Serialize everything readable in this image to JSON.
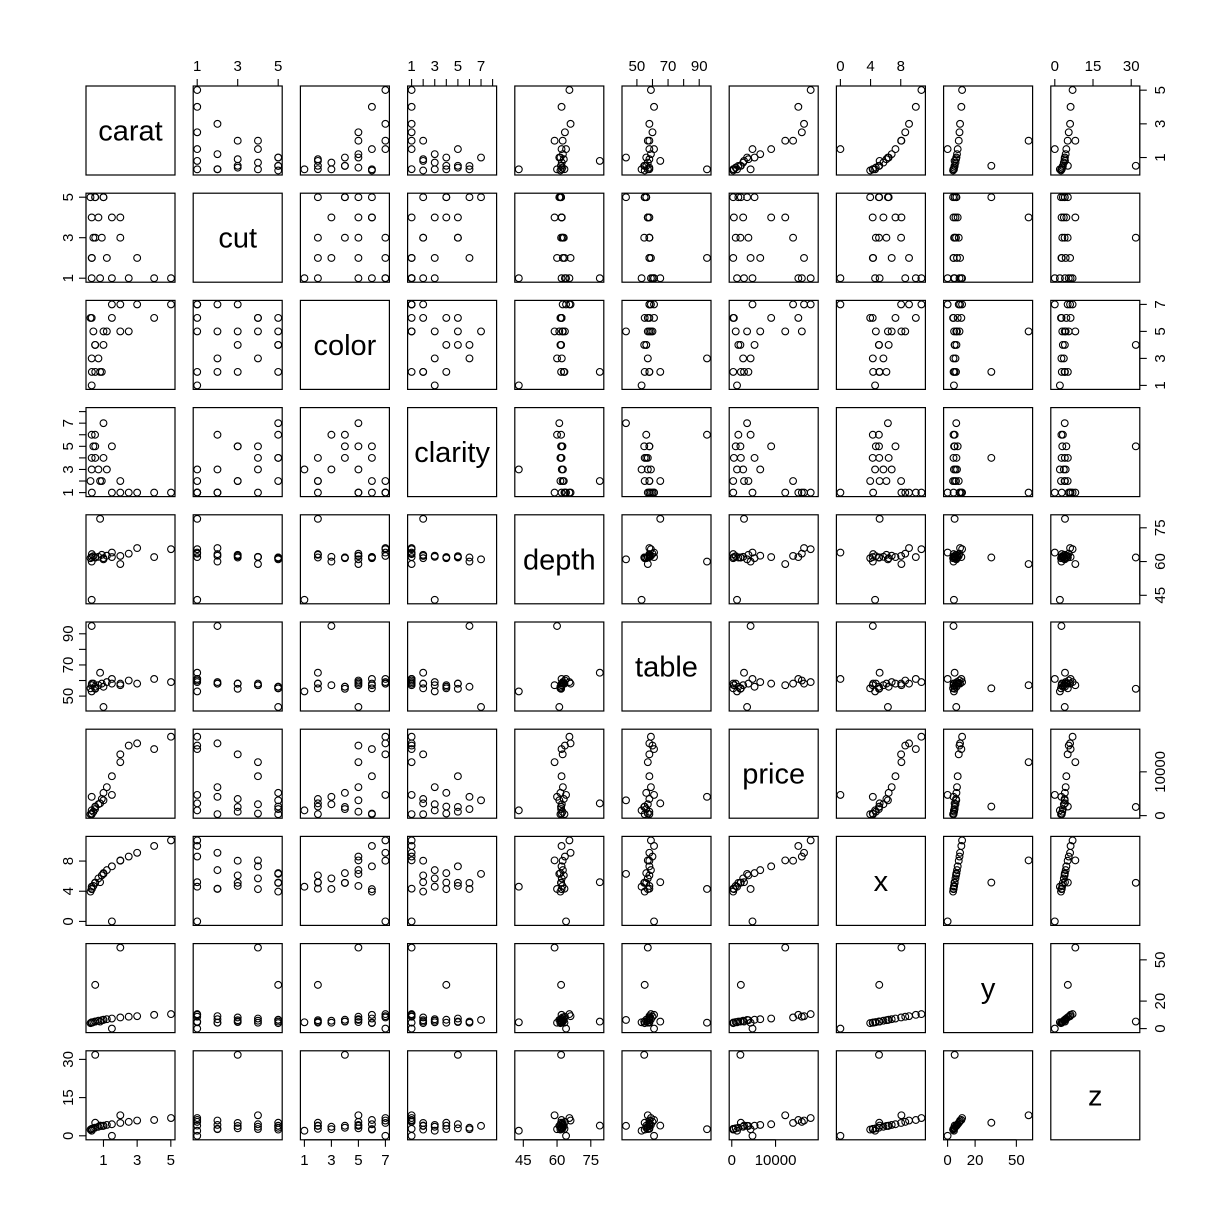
{
  "chart_data": {
    "type": "scatter",
    "subtype": "scatterplot-matrix",
    "title": "",
    "variables": [
      "carat",
      "cut",
      "color",
      "clarity",
      "depth",
      "table",
      "price",
      "x",
      "y",
      "z"
    ],
    "ranges": {
      "carat": [
        0.2,
        5.01
      ],
      "cut": [
        1,
        5
      ],
      "color": [
        1,
        7
      ],
      "clarity": [
        1,
        8
      ],
      "depth": [
        43,
        79
      ],
      "table": [
        43,
        95
      ],
      "price": [
        326,
        18823
      ],
      "x": [
        0,
        10.74
      ],
      "y": [
        0,
        58.9
      ],
      "z": [
        0,
        31.8
      ]
    },
    "ticks": {
      "carat": [
        1,
        3,
        5
      ],
      "cut": [
        1,
        3,
        5
      ],
      "color": [
        1,
        3,
        5,
        7
      ],
      "clarity": [
        1,
        3,
        5,
        7
      ],
      "depth": [
        45,
        60,
        75
      ],
      "table": [
        50,
        70,
        90
      ],
      "price": [
        0,
        10000
      ],
      "x": [
        0,
        4,
        8
      ],
      "y": [
        0,
        20,
        50
      ],
      "z": [
        0,
        15,
        30
      ]
    },
    "minor_ticks": {
      "clarity": [
        2,
        4,
        6,
        8
      ],
      "table": [
        60,
        80
      ]
    },
    "tick_labels": {
      "carat": [
        "1",
        "3",
        "5"
      ],
      "cut": [
        "1",
        "3",
        "5"
      ],
      "color": [
        "1",
        "3",
        "5",
        "7"
      ],
      "clarity": [
        "1",
        "3",
        "5",
        "7"
      ],
      "depth": [
        "45",
        "60",
        "75"
      ],
      "table": [
        "50",
        "70",
        "90"
      ],
      "price": [
        "0",
        "10000"
      ],
      "x": [
        "0",
        "4",
        "8"
      ],
      "y": [
        "0",
        "20",
        "50"
      ],
      "z": [
        "0",
        "15",
        "30"
      ]
    },
    "axis_layout": "alternating-outer",
    "grid": false,
    "legend": "none",
    "point_style": "open-circle",
    "point_color": "#000000",
    "sample_points": [
      {
        "carat": 0.23,
        "cut": 5,
        "color": 6,
        "clarity": 2,
        "depth": 61.5,
        "table": 55,
        "price": 326,
        "x": 3.95,
        "y": 3.98,
        "z": 2.43
      },
      {
        "carat": 0.3,
        "cut": 4,
        "color": 6,
        "clarity": 4,
        "depth": 62.0,
        "table": 57,
        "price": 480,
        "x": 4.28,
        "y": 4.3,
        "z": 2.66
      },
      {
        "carat": 0.31,
        "cut": 2,
        "color": 2,
        "clarity": 1,
        "depth": 63.3,
        "table": 58,
        "price": 335,
        "x": 4.34,
        "y": 4.35,
        "z": 2.75
      },
      {
        "carat": 0.4,
        "cut": 3,
        "color": 5,
        "clarity": 5,
        "depth": 62.4,
        "table": 58,
        "price": 900,
        "x": 4.7,
        "y": 4.72,
        "z": 2.94
      },
      {
        "carat": 0.5,
        "cut": 5,
        "color": 4,
        "clarity": 6,
        "depth": 61.8,
        "table": 56,
        "price": 1500,
        "x": 5.1,
        "y": 5.12,
        "z": 3.16
      },
      {
        "carat": 0.7,
        "cut": 4,
        "color": 3,
        "clarity": 3,
        "depth": 62.1,
        "table": 57,
        "price": 2600,
        "x": 5.7,
        "y": 5.73,
        "z": 3.55
      },
      {
        "carat": 0.9,
        "cut": 3,
        "color": 2,
        "clarity": 2,
        "depth": 63.0,
        "table": 58,
        "price": 3800,
        "x": 6.1,
        "y": 6.12,
        "z": 3.85
      },
      {
        "carat": 1.0,
        "cut": 5,
        "color": 4,
        "clarity": 4,
        "depth": 61.5,
        "table": 56,
        "price": 5200,
        "x": 6.4,
        "y": 6.43,
        "z": 3.95
      },
      {
        "carat": 1.2,
        "cut": 2,
        "color": 5,
        "clarity": 3,
        "depth": 62.6,
        "table": 59,
        "price": 6500,
        "x": 6.8,
        "y": 6.83,
        "z": 4.27
      },
      {
        "carat": 1.5,
        "cut": 4,
        "color": 6,
        "clarity": 5,
        "depth": 62.0,
        "table": 58,
        "price": 9000,
        "x": 7.3,
        "y": 7.33,
        "z": 4.53
      },
      {
        "carat": 2.0,
        "cut": 3,
        "color": 7,
        "clarity": 2,
        "depth": 62.5,
        "table": 58,
        "price": 14000,
        "x": 8.05,
        "y": 8.1,
        "z": 5.05
      },
      {
        "carat": 2.5,
        "cut": 1,
        "color": 5,
        "clarity": 1,
        "depth": 63.5,
        "table": 60,
        "price": 16000,
        "x": 8.6,
        "y": 8.65,
        "z": 5.47
      },
      {
        "carat": 3.0,
        "cut": 2,
        "color": 7,
        "clarity": 1,
        "depth": 66.0,
        "table": 58,
        "price": 16500,
        "x": 9.1,
        "y": 9.05,
        "z": 6.0
      },
      {
        "carat": 4.01,
        "cut": 1,
        "color": 6,
        "clarity": 1,
        "depth": 62.0,
        "table": 61,
        "price": 15200,
        "x": 10.0,
        "y": 10.0,
        "z": 6.2
      },
      {
        "carat": 5.01,
        "cut": 1,
        "color": 7,
        "clarity": 1,
        "depth": 65.5,
        "table": 59,
        "price": 18018,
        "x": 10.74,
        "y": 10.54,
        "z": 6.98
      },
      {
        "carat": 0.51,
        "cut": 5,
        "color": 2,
        "clarity": 4,
        "depth": 61.8,
        "table": 55,
        "price": 2075,
        "x": 5.15,
        "y": 31.8,
        "z": 5.12
      },
      {
        "carat": 2.0,
        "cut": 4,
        "color": 5,
        "clarity": 1,
        "depth": 58.9,
        "table": 57,
        "price": 12210,
        "x": 8.09,
        "y": 58.9,
        "z": 8.06
      },
      {
        "carat": 0.51,
        "cut": 3,
        "color": 4,
        "clarity": 5,
        "depth": 61.8,
        "table": 54.7,
        "price": 1970,
        "x": 5.12,
        "y": 5.15,
        "z": 31.8
      },
      {
        "carat": 1.5,
        "cut": 1,
        "color": 7,
        "clarity": 1,
        "depth": 64.0,
        "table": 61,
        "price": 4731,
        "x": 0.0,
        "y": 0.0,
        "z": 0.0
      },
      {
        "carat": 0.8,
        "cut": 1,
        "color": 2,
        "clarity": 2,
        "depth": 79.0,
        "table": 65,
        "price": 2800,
        "x": 5.2,
        "y": 5.1,
        "z": 4.0
      },
      {
        "carat": 0.3,
        "cut": 1,
        "color": 1,
        "clarity": 3,
        "depth": 43.0,
        "table": 53,
        "price": 1200,
        "x": 4.6,
        "y": 4.6,
        "z": 2.0
      },
      {
        "carat": 0.3,
        "cut": 2,
        "color": 3,
        "clarity": 6,
        "depth": 60.0,
        "table": 95,
        "price": 4300,
        "x": 4.3,
        "y": 4.3,
        "z": 2.6
      },
      {
        "carat": 1.0,
        "cut": 5,
        "color": 5,
        "clarity": 7,
        "depth": 61.0,
        "table": 43,
        "price": 3500,
        "x": 6.3,
        "y": 6.3,
        "z": 3.9
      }
    ]
  }
}
